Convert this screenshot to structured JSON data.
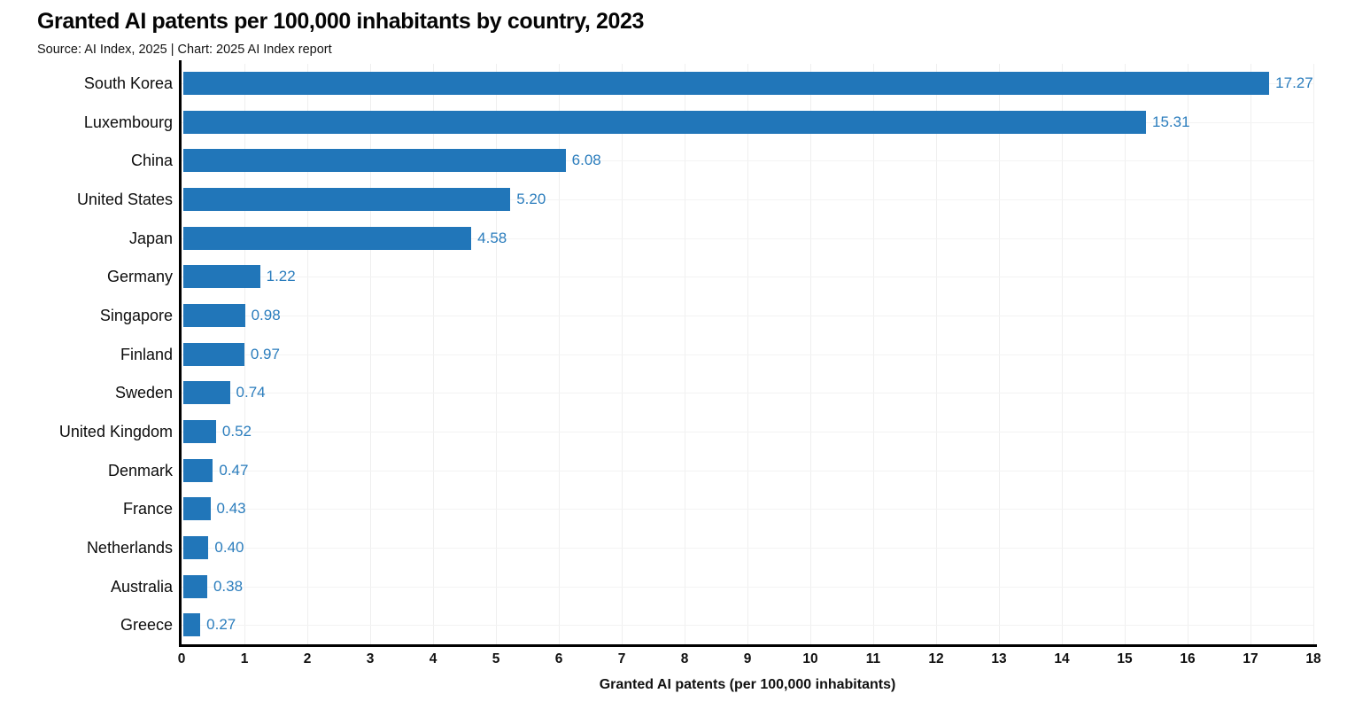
{
  "title": "Granted AI patents per 100,000 inhabitants by country, 2023",
  "subtitle": "Source: AI Index, 2025 | Chart: 2025 AI Index report",
  "colors": {
    "bar": "#2176b9",
    "value_label": "#2b7dbd",
    "axis": "#000000",
    "grid": "#efefef"
  },
  "chart_data": {
    "type": "bar",
    "orientation": "horizontal",
    "title": "Granted AI patents per 100,000 inhabitants by country, 2023",
    "subtitle": "Source: AI Index, 2025 | Chart: 2025 AI Index report",
    "xlabel": "Granted AI patents (per 100,000 inhabitants)",
    "ylabel": "",
    "xlim": [
      0,
      18
    ],
    "xticks": [
      0,
      1,
      2,
      3,
      4,
      5,
      6,
      7,
      8,
      9,
      10,
      11,
      12,
      13,
      14,
      15,
      16,
      17,
      18
    ],
    "grid": true,
    "legend": false,
    "categories": [
      "South Korea",
      "Luxembourg",
      "China",
      "United States",
      "Japan",
      "Germany",
      "Singapore",
      "Finland",
      "Sweden",
      "United Kingdom",
      "Denmark",
      "France",
      "Netherlands",
      "Australia",
      "Greece"
    ],
    "values": [
      17.27,
      15.31,
      6.08,
      5.2,
      4.58,
      1.22,
      0.98,
      0.97,
      0.74,
      0.52,
      0.47,
      0.43,
      0.4,
      0.38,
      0.27
    ],
    "value_labels": [
      "17.27",
      "15.31",
      "6.08",
      "5.20",
      "4.58",
      "1.22",
      "0.98",
      "0.97",
      "0.74",
      "0.52",
      "0.47",
      "0.43",
      "0.40",
      "0.38",
      "0.27"
    ]
  }
}
